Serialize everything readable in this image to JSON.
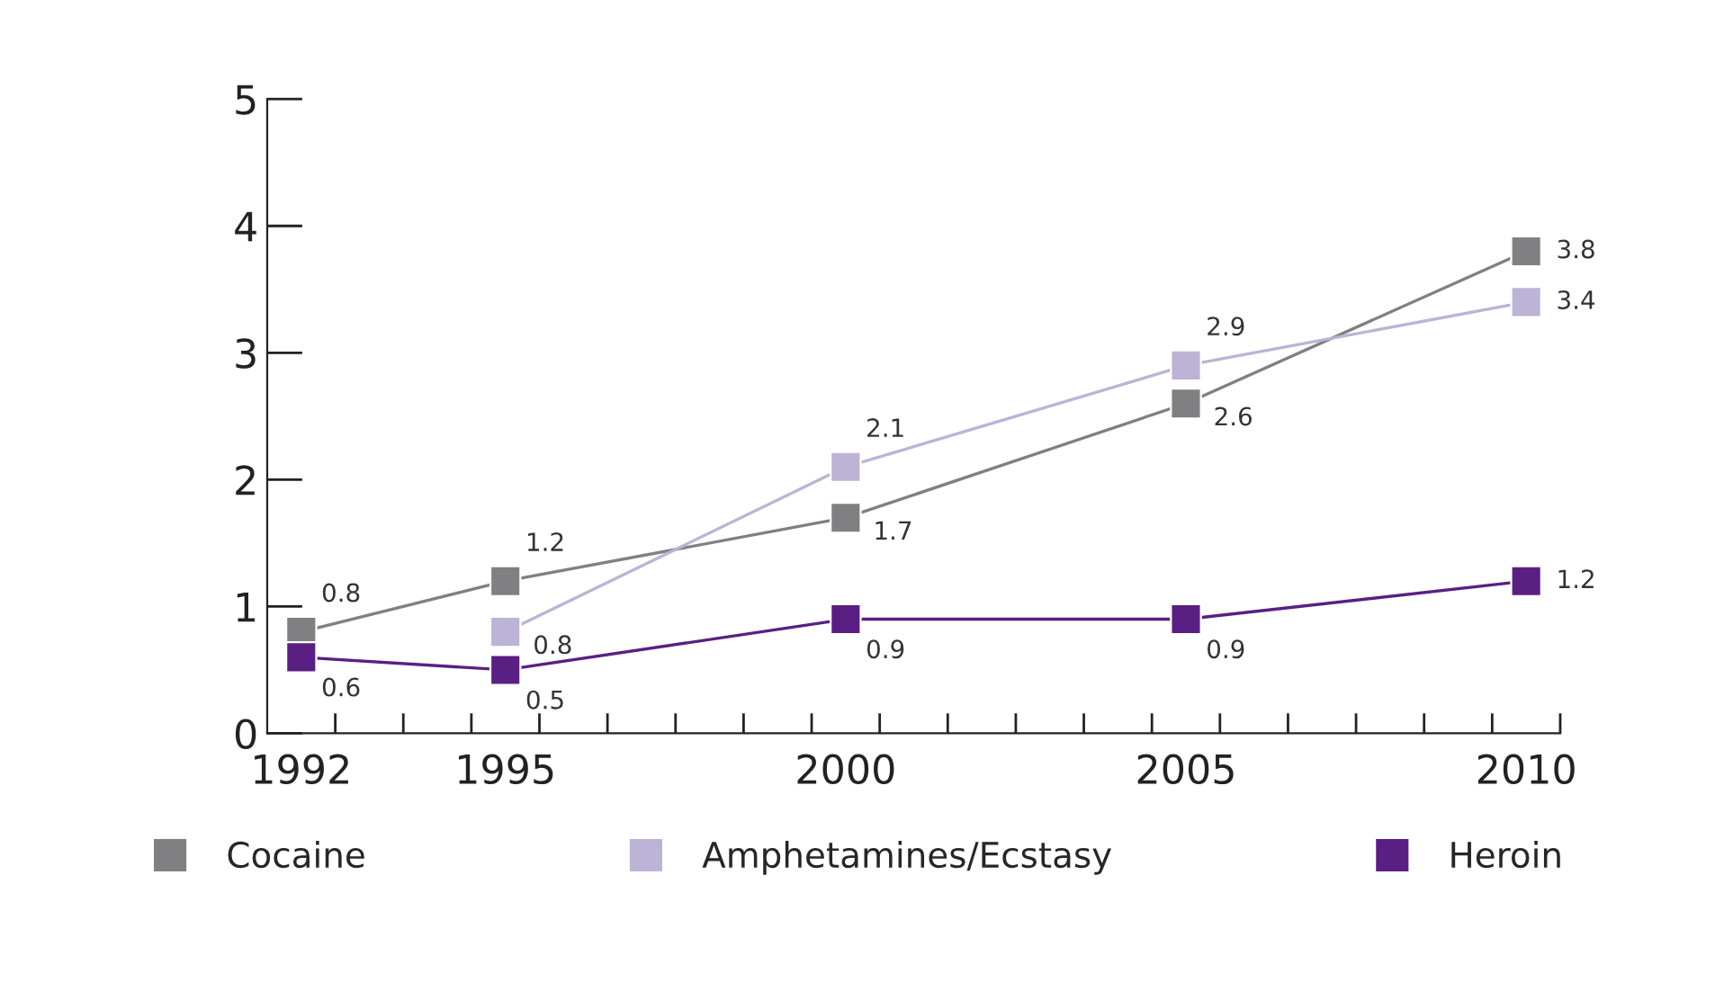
{
  "chart_data": {
    "type": "line",
    "x": [
      1992,
      1995,
      2000,
      2005,
      2010
    ],
    "series": [
      {
        "name": "Cocaine",
        "color": "#808083",
        "values": [
          0.8,
          1.2,
          1.7,
          2.6,
          3.8
        ]
      },
      {
        "name": "Amphetamines/Ecstasy",
        "color": "#bcb3d6",
        "values": [
          null,
          0.8,
          2.1,
          2.9,
          3.4
        ]
      },
      {
        "name": "Heroin",
        "color": "#5a1f82",
        "values": [
          0.6,
          0.5,
          0.9,
          0.9,
          1.2
        ]
      }
    ],
    "xlim": [
      1991.5,
      2010.5
    ],
    "xticks": [
      {
        "value": 1992,
        "label": "1992"
      },
      {
        "value": 1995,
        "label": "1995"
      },
      {
        "value": 2000,
        "label": "2000"
      },
      {
        "value": 2005,
        "label": "2005"
      },
      {
        "value": 2010,
        "label": "2010"
      },
      {
        "value": 1992.5,
        "label": null
      },
      {
        "value": 1993.5,
        "label": null
      },
      {
        "value": 1994.5,
        "label": null
      },
      {
        "value": 1995.5,
        "label": null
      },
      {
        "value": 1996.5,
        "label": null
      },
      {
        "value": 1997.5,
        "label": null
      },
      {
        "value": 1998.5,
        "label": null
      },
      {
        "value": 1999.5,
        "label": null
      },
      {
        "value": 2000.5,
        "label": null
      },
      {
        "value": 2001.5,
        "label": null
      },
      {
        "value": 2002.5,
        "label": null
      },
      {
        "value": 2003.5,
        "label": null
      },
      {
        "value": 2004.5,
        "label": null
      },
      {
        "value": 2005.5,
        "label": null
      },
      {
        "value": 2006.5,
        "label": null
      },
      {
        "value": 2007.5,
        "label": null
      },
      {
        "value": 2008.5,
        "label": null
      },
      {
        "value": 2009.5,
        "label": null
      },
      {
        "value": 2010.5,
        "label": null
      }
    ],
    "ylim": [
      0,
      5
    ],
    "yticks": [
      0,
      1,
      2,
      3,
      4,
      5
    ],
    "marker": "square",
    "line_style": "solid",
    "grid": false,
    "legend": "bottom",
    "data_labels": true
  }
}
